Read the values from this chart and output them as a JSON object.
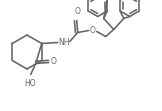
{
  "bg_color": "#ffffff",
  "line_color": "#646464",
  "text_color": "#646464",
  "line_width": 1.15,
  "figsize": [
    1.62,
    1.11
  ],
  "dpi": 100,
  "xlim": [
    0,
    162
  ],
  "ylim": [
    0,
    111
  ]
}
